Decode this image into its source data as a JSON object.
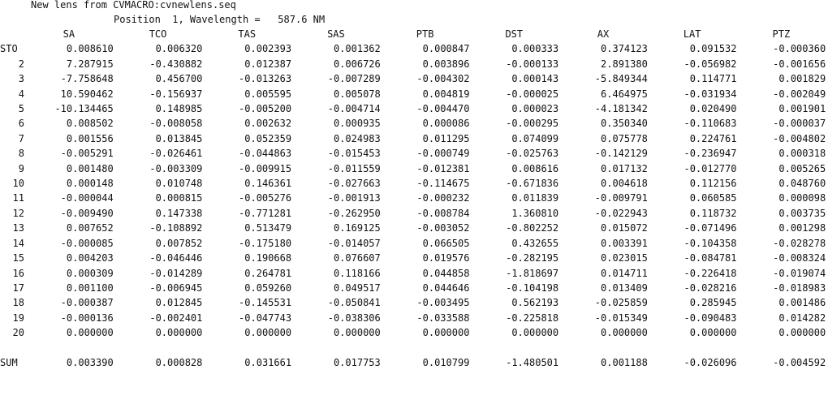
{
  "report": {
    "title": "New lens from CVMACRO:cvnewlens.seq",
    "subtitle": "Position  1, Wavelength =   587.6 NM"
  },
  "table": {
    "columns": [
      "SA",
      "TCO",
      "TAS",
      "SAS",
      "PTB",
      "DST",
      "AX",
      "LAT",
      "PTZ"
    ],
    "rows": [
      {
        "label": "STO",
        "values": [
          "0.008610",
          "0.006320",
          "0.002393",
          "0.001362",
          "0.000847",
          "0.000333",
          "0.374123",
          "0.091532",
          "-0.000360"
        ]
      },
      {
        "label": "2",
        "values": [
          "7.287915",
          "-0.430882",
          "0.012387",
          "0.006726",
          "0.003896",
          "-0.000133",
          "2.891380",
          "-0.056982",
          "-0.001656"
        ]
      },
      {
        "label": "3",
        "values": [
          "-7.758648",
          "0.456700",
          "-0.013263",
          "-0.007289",
          "-0.004302",
          "0.000143",
          "-5.849344",
          "0.114771",
          "0.001829"
        ]
      },
      {
        "label": "4",
        "values": [
          "10.590462",
          "-0.156937",
          "0.005595",
          "0.005078",
          "0.004819",
          "-0.000025",
          "6.464975",
          "-0.031934",
          "-0.002049"
        ]
      },
      {
        "label": "5",
        "values": [
          "-10.134465",
          "0.148985",
          "-0.005200",
          "-0.004714",
          "-0.004470",
          "0.000023",
          "-4.181342",
          "0.020490",
          "0.001901"
        ]
      },
      {
        "label": "6",
        "values": [
          "0.008502",
          "-0.008058",
          "0.002632",
          "0.000935",
          "0.000086",
          "-0.000295",
          "0.350340",
          "-0.110683",
          "-0.000037"
        ]
      },
      {
        "label": "7",
        "values": [
          "0.001556",
          "0.013845",
          "0.052359",
          "0.024983",
          "0.011295",
          "0.074099",
          "0.075778",
          "0.224761",
          "-0.004802"
        ]
      },
      {
        "label": "8",
        "values": [
          "-0.005291",
          "-0.026461",
          "-0.044863",
          "-0.015453",
          "-0.000749",
          "-0.025763",
          "-0.142129",
          "-0.236947",
          "0.000318"
        ]
      },
      {
        "label": "9",
        "values": [
          "0.001480",
          "-0.003309",
          "-0.009915",
          "-0.011559",
          "-0.012381",
          "0.008616",
          "0.017132",
          "-0.012770",
          "0.005265"
        ]
      },
      {
        "label": "10",
        "values": [
          "0.000148",
          "0.010748",
          "0.146361",
          "-0.027663",
          "-0.114675",
          "-0.671836",
          "0.004618",
          "0.112156",
          "0.048760"
        ]
      },
      {
        "label": "11",
        "values": [
          "-0.000044",
          "0.000815",
          "-0.005276",
          "-0.001913",
          "-0.000232",
          "0.011839",
          "-0.009791",
          "0.060585",
          "0.000098"
        ]
      },
      {
        "label": "12",
        "values": [
          "-0.009490",
          "0.147338",
          "-0.771281",
          "-0.262950",
          "-0.008784",
          "1.360810",
          "-0.022943",
          "0.118732",
          "0.003735"
        ]
      },
      {
        "label": "13",
        "values": [
          "0.007652",
          "-0.108892",
          "0.513479",
          "0.169125",
          "-0.003052",
          "-0.802252",
          "0.015072",
          "-0.071496",
          "0.001298"
        ]
      },
      {
        "label": "14",
        "values": [
          "-0.000085",
          "0.007852",
          "-0.175180",
          "-0.014057",
          "0.066505",
          "0.432655",
          "0.003391",
          "-0.104358",
          "-0.028278"
        ]
      },
      {
        "label": "15",
        "values": [
          "0.004203",
          "-0.046446",
          "0.190668",
          "0.076607",
          "0.019576",
          "-0.282195",
          "0.023015",
          "-0.084781",
          "-0.008324"
        ]
      },
      {
        "label": "16",
        "values": [
          "0.000309",
          "-0.014289",
          "0.264781",
          "0.118166",
          "0.044858",
          "-1.818697",
          "0.014711",
          "-0.226418",
          "-0.019074"
        ]
      },
      {
        "label": "17",
        "values": [
          "0.001100",
          "-0.006945",
          "0.059260",
          "0.049517",
          "0.044646",
          "-0.104198",
          "0.013409",
          "-0.028216",
          "-0.018983"
        ]
      },
      {
        "label": "18",
        "values": [
          "-0.000387",
          "0.012845",
          "-0.145531",
          "-0.050841",
          "-0.003495",
          "0.562193",
          "-0.025859",
          "0.285945",
          "0.001486"
        ]
      },
      {
        "label": "19",
        "values": [
          "-0.000136",
          "-0.002401",
          "-0.047743",
          "-0.038306",
          "-0.033588",
          "-0.225818",
          "-0.015349",
          "-0.090483",
          "0.014282"
        ]
      },
      {
        "label": "20",
        "values": [
          "0.000000",
          "0.000000",
          "0.000000",
          "0.000000",
          "0.000000",
          "0.000000",
          "0.000000",
          "0.000000",
          "0.000000"
        ]
      }
    ],
    "sum": {
      "label": "SUM",
      "values": [
        "0.003390",
        "0.000828",
        "0.031661",
        "0.017753",
        "0.010799",
        "-1.480501",
        "0.001188",
        "-0.026096",
        "-0.004592"
      ]
    }
  }
}
